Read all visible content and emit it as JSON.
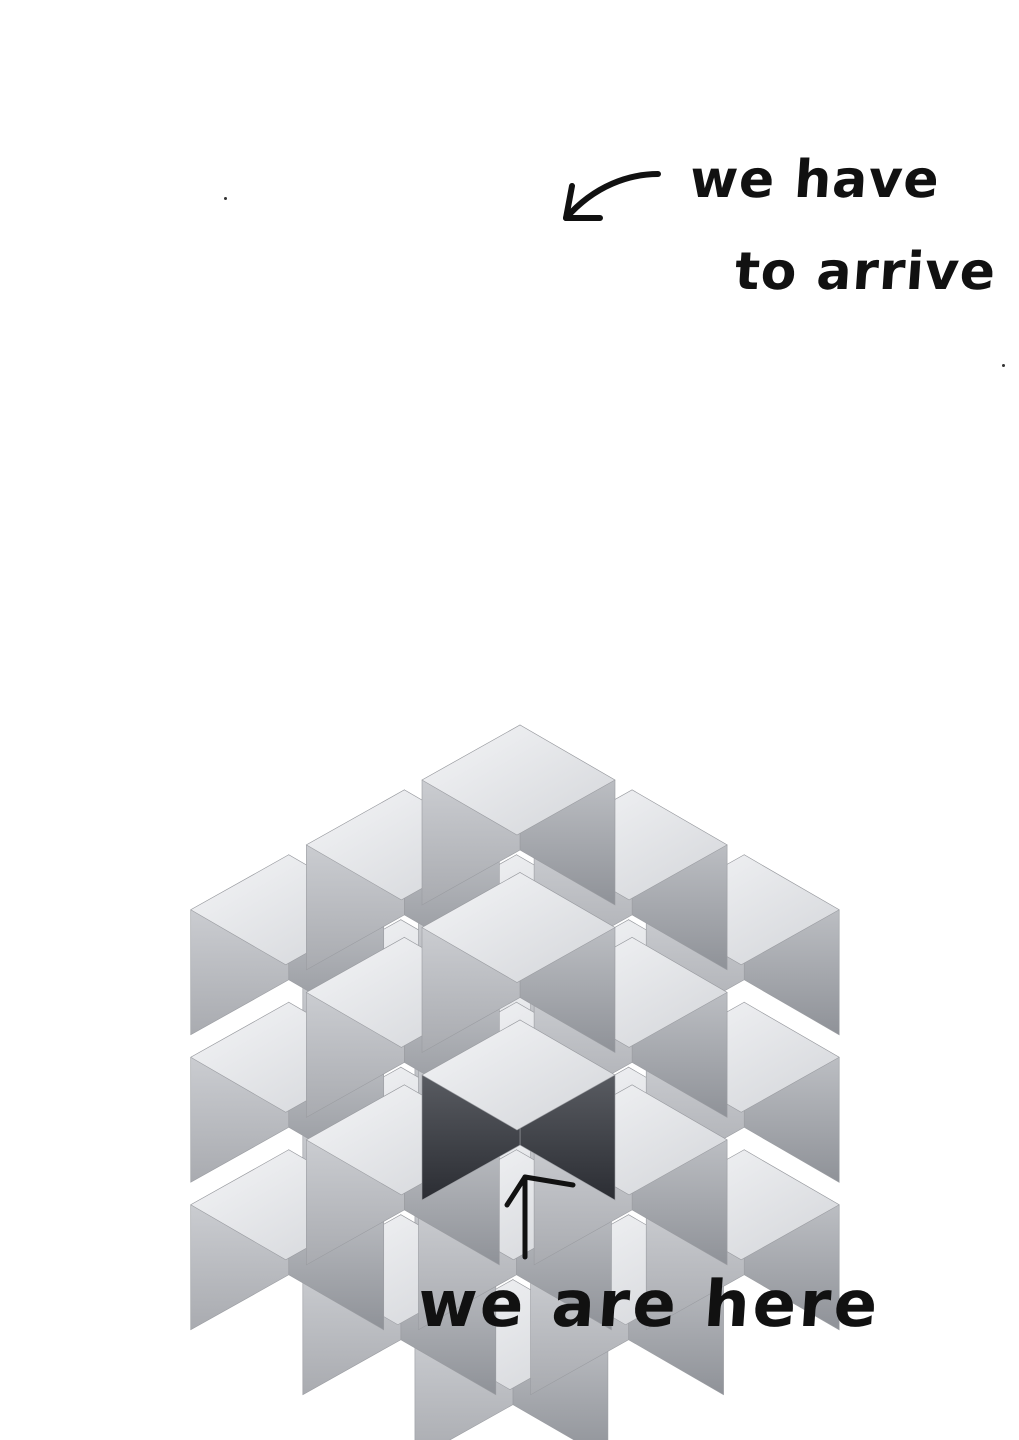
{
  "annotations": {
    "target_line1": "we have",
    "target_line2": "to arrive",
    "current": "we are here"
  },
  "colors": {
    "top_face_light": "#eceef1",
    "top_face_dark": "#d4d6da",
    "left_face_light": "#d6d8dc",
    "left_face_dark": "#a4a6ab",
    "right_face_light": "#c8cacf",
    "right_face_dark": "#8c8f95",
    "bottom_shadow": "#2f3137",
    "ink": "#111111"
  },
  "icons": {
    "target_arrow": "curved-arrow-icon",
    "current_arrow": "up-arrow-icon"
  }
}
